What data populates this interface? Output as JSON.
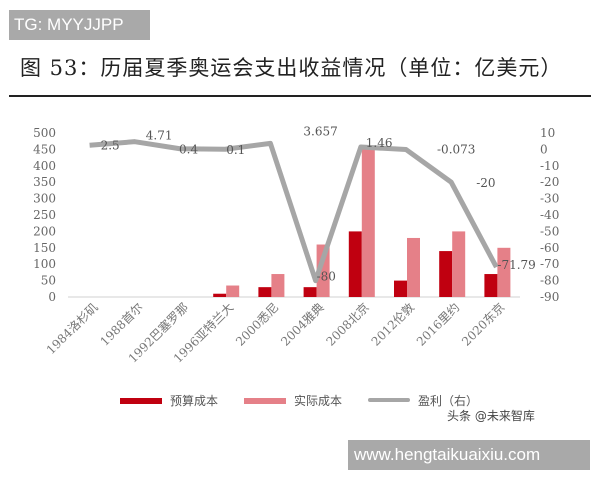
{
  "watermark_tag": "TG: MYYJJPP",
  "watermark_url": "www.hengtaikuaixiu.com",
  "watermark_source": "头条 @未来智库",
  "title": "图 53：历届夏季奥运会支出收益情况（单位：亿美元）",
  "colors": {
    "budget": "#c00010",
    "actual": "#e58088",
    "profit": "#a6a6a6"
  },
  "chart_data": {
    "type": "bar",
    "title": "图 53：历届夏季奥运会支出收益情况（单位：亿美元）",
    "categories": [
      "1984洛杉矶",
      "1988首尔",
      "1992巴塞罗那",
      "1996亚特兰大",
      "2000悉尼",
      "2004雅典",
      "2008北京",
      "2012伦敦",
      "2016里约",
      "2020东京"
    ],
    "series": [
      {
        "name": "预算成本",
        "type": "bar",
        "axis": "left",
        "values": [
          0,
          0,
          0,
          10,
          30,
          30,
          200,
          50,
          140,
          70
        ]
      },
      {
        "name": "实际成本",
        "type": "bar",
        "axis": "left",
        "values": [
          0,
          0,
          0,
          35,
          70,
          160,
          450,
          180,
          200,
          150
        ]
      },
      {
        "name": "盈利（右）",
        "type": "line",
        "axis": "right",
        "values": [
          2.5,
          4.71,
          0.4,
          0.1,
          3.657,
          -80,
          1.46,
          -0.073,
          -20,
          -71.79
        ]
      }
    ],
    "data_labels": [
      "2.5",
      "4.71",
      "0.4",
      "0.1",
      "3.657",
      "-80",
      "1.46",
      "-0.073",
      "-20",
      "-71.79"
    ],
    "y_left": {
      "range": [
        0,
        500
      ],
      "ticks": [
        0,
        50,
        100,
        150,
        200,
        250,
        300,
        350,
        400,
        450,
        500
      ]
    },
    "y_right": {
      "range": [
        -90,
        10
      ],
      "ticks": [
        10,
        0,
        -10,
        -20,
        -30,
        -40,
        -50,
        -60,
        -70,
        -80,
        -90
      ]
    },
    "legend": [
      "预算成本",
      "实际成本",
      "盈利（右）"
    ],
    "legend_position": "bottom",
    "grid": false
  }
}
